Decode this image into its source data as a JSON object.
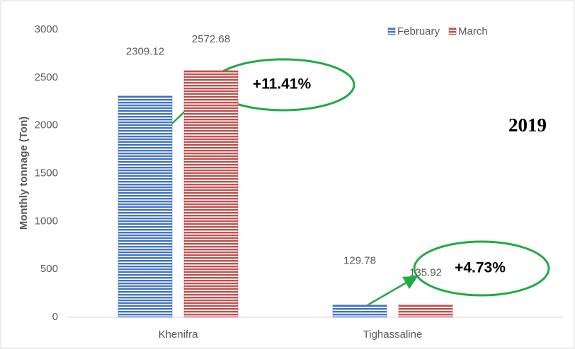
{
  "chart_data": {
    "type": "bar",
    "y_label": "Monthly tonnage (Ton)",
    "categories": [
      "Khenifra",
      "Tighassaline"
    ],
    "series": [
      {
        "name": "February",
        "color": "#4472c4",
        "values": [
          2309.12,
          129.78
        ]
      },
      {
        "name": "March",
        "color": "#c0504d",
        "values": [
          2572.68,
          135.92
        ]
      }
    ],
    "ylim": [
      0,
      3000
    ],
    "yticks": [
      0,
      500,
      1000,
      1500,
      2000,
      2500,
      3000
    ],
    "grid": false,
    "legend": "top-right",
    "annotations": [
      "+11.41%",
      "+4.73%",
      "2019"
    ]
  }
}
